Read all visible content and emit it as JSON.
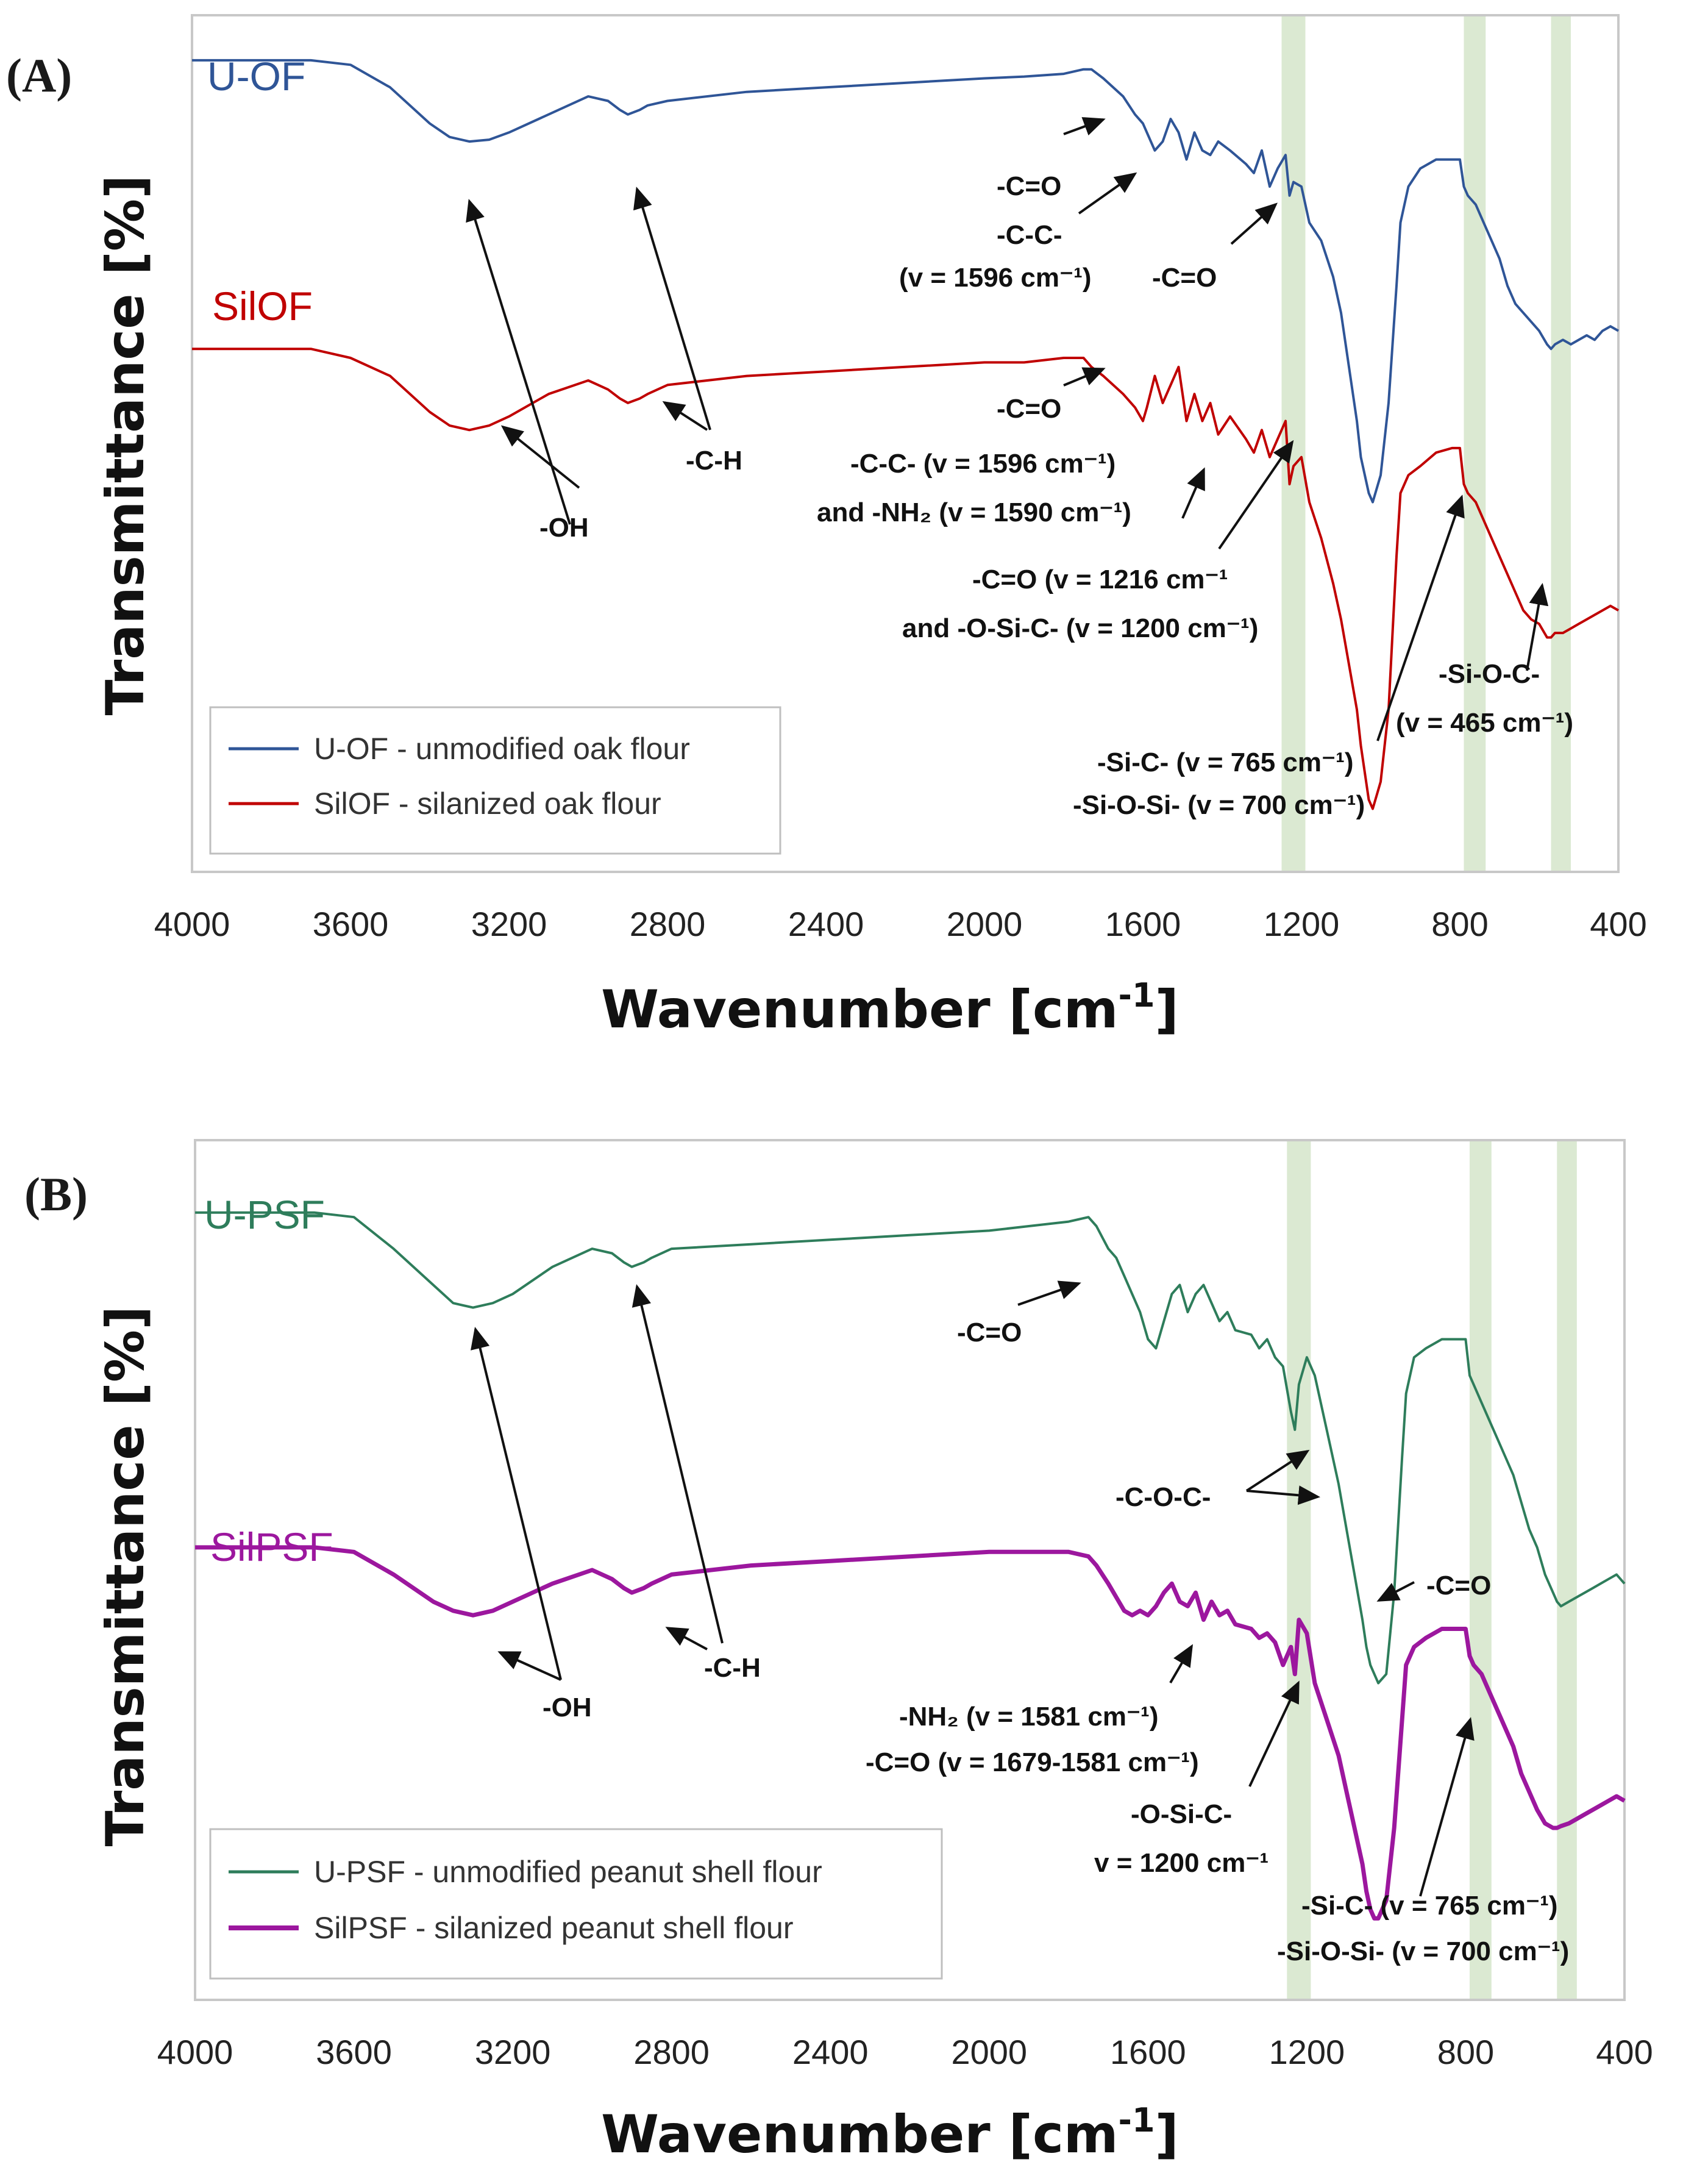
{
  "chart_data": [
    {
      "type": "line",
      "panel_label": "(A)",
      "xlabel": "Wavenumber [cm",
      "xlabel_sup": "-1",
      "xlabel_end": "]",
      "ylabel": "Transmittance [%]",
      "xlim": [
        4000,
        400
      ],
      "x_ticks": [
        "4000",
        "3600",
        "3200",
        "2800",
        "2400",
        "2000",
        "1600",
        "1200",
        "800",
        "400"
      ],
      "highlight_bands": [
        [
          1250,
          1190
        ],
        [
          790,
          735
        ],
        [
          570,
          520
        ]
      ],
      "series": [
        {
          "name": "U-OF",
          "color": "#2f5597",
          "x": [
            4000,
            3800,
            3700,
            3600,
            3500,
            3400,
            3350,
            3300,
            3250,
            3200,
            3100,
            3000,
            2950,
            2920,
            2900,
            2870,
            2850,
            2800,
            2600,
            2400,
            2200,
            2000,
            1900,
            1800,
            1750,
            1730,
            1700,
            1650,
            1620,
            1600,
            1590,
            1570,
            1550,
            1530,
            1510,
            1490,
            1470,
            1450,
            1430,
            1410,
            1380,
            1340,
            1320,
            1300,
            1280,
            1260,
            1240,
            1230,
            1220,
            1200,
            1180,
            1150,
            1120,
            1100,
            1080,
            1060,
            1050,
            1040,
            1030,
            1020,
            1000,
            980,
            960,
            950,
            930,
            900,
            860,
            820,
            800,
            790,
            780,
            760,
            740,
            720,
            700,
            680,
            660,
            640,
            620,
            600,
            580,
            570,
            560,
            540,
            520,
            500,
            480,
            460,
            440,
            420,
            400
          ],
          "y": [
            70,
            70,
            70,
            69.5,
            67,
            63,
            61.5,
            61,
            61.2,
            62,
            64,
            66,
            65.5,
            64.5,
            64,
            64.5,
            65,
            65.5,
            66.5,
            67,
            67.5,
            68,
            68.2,
            68.5,
            69,
            69,
            68,
            66,
            64,
            63,
            62,
            60,
            61,
            63.5,
            62,
            59,
            62,
            60,
            59.5,
            61,
            60,
            58.5,
            57.5,
            60,
            56,
            58,
            59.5,
            55,
            56.5,
            56,
            52,
            50,
            46,
            42,
            36,
            30,
            26,
            24,
            22,
            21,
            24,
            32,
            45,
            52,
            56,
            58,
            59,
            59,
            59,
            56,
            55,
            54,
            52,
            50,
            48,
            45,
            43,
            42,
            41,
            40,
            38.5,
            38,
            38.5,
            39,
            38.5,
            39,
            39.5,
            39,
            40,
            40.5,
            40
          ]
        },
        {
          "name": "SilOF",
          "color": "#c00000",
          "x": [
            4000,
            3800,
            3700,
            3600,
            3500,
            3400,
            3350,
            3300,
            3250,
            3200,
            3100,
            3000,
            2950,
            2920,
            2900,
            2870,
            2850,
            2800,
            2600,
            2400,
            2200,
            2000,
            1900,
            1800,
            1750,
            1730,
            1700,
            1650,
            1620,
            1600,
            1590,
            1570,
            1550,
            1530,
            1510,
            1490,
            1470,
            1450,
            1430,
            1410,
            1380,
            1340,
            1320,
            1300,
            1280,
            1260,
            1240,
            1230,
            1220,
            1200,
            1180,
            1150,
            1120,
            1100,
            1080,
            1060,
            1050,
            1040,
            1030,
            1020,
            1000,
            980,
            960,
            950,
            930,
            900,
            860,
            820,
            800,
            790,
            780,
            760,
            740,
            720,
            700,
            680,
            660,
            640,
            620,
            600,
            580,
            570,
            560,
            540,
            520,
            500,
            480,
            460,
            440,
            420,
            400
          ],
          "y": [
            38,
            38,
            38,
            37,
            35,
            31,
            29.5,
            29,
            29.5,
            30.5,
            33,
            34.5,
            33.5,
            32.5,
            32,
            32.5,
            33,
            34,
            35,
            35.5,
            36,
            36.5,
            36.5,
            37,
            37,
            36,
            35,
            33,
            31.5,
            30,
            31.5,
            35,
            32,
            34,
            36,
            30,
            33,
            30,
            32,
            28.5,
            30.5,
            28,
            26.5,
            29,
            26,
            28,
            30,
            23,
            25,
            26,
            21,
            17,
            12,
            8,
            3,
            -2,
            -6,
            -9,
            -12,
            -13,
            -10,
            -2,
            15,
            22,
            24,
            25,
            26.5,
            27,
            27,
            23,
            22,
            21,
            19,
            17,
            15,
            13,
            11,
            9,
            8,
            7.5,
            6,
            6,
            6.5,
            6.5,
            7,
            7.5,
            8,
            8.5,
            9,
            9.5,
            9
          ]
        }
      ],
      "series_labels": [
        "U-OF",
        "SilOF"
      ],
      "legend": {
        "position": "bottom-left",
        "entries": [
          {
            "text": "U-OF - unmodified oak flour",
            "color": "#2f5597"
          },
          {
            "text": "SilOF - silanized oak flour",
            "color": "#c00000"
          }
        ]
      },
      "annotations": [
        {
          "id": "a1",
          "text": "-C=O"
        },
        {
          "id": "a2",
          "text": "-C-C-"
        },
        {
          "id": "a3",
          "text": "(v = 1596 cm⁻¹)"
        },
        {
          "id": "a4",
          "text": "-C=O"
        },
        {
          "id": "a5",
          "text": "-C=O"
        },
        {
          "id": "a6",
          "text": "-C-C- (v = 1596 cm⁻¹)"
        },
        {
          "id": "a7",
          "text": "and -NH₂ (v = 1590 cm⁻¹)"
        },
        {
          "id": "a8",
          "text": "-C=O (v = 1216 cm⁻¹"
        },
        {
          "id": "a9",
          "text": "and -O-Si-C- (v = 1200 cm⁻¹)"
        },
        {
          "id": "a10",
          "text": "-C-H"
        },
        {
          "id": "a11",
          "text": "-OH"
        },
        {
          "id": "a12",
          "text": "-Si-O-C-"
        },
        {
          "id": "a13",
          "text": "(v = 465 cm⁻¹)"
        },
        {
          "id": "a14",
          "text": "-Si-C- (v = 765 cm⁻¹)"
        },
        {
          "id": "a15",
          "text": "-Si-O-Si- (v = 700 cm⁻¹)"
        }
      ]
    },
    {
      "type": "line",
      "panel_label": "(B)",
      "xlabel": "Wavenumber [cm",
      "xlabel_sup": "-1",
      "xlabel_end": "]",
      "ylabel": "Transmittance [%]",
      "xlim": [
        4000,
        400
      ],
      "x_ticks": [
        "4000",
        "3600",
        "3200",
        "2800",
        "2400",
        "2000",
        "1600",
        "1200",
        "800",
        "400"
      ],
      "highlight_bands": [
        [
          1250,
          1190
        ],
        [
          790,
          735
        ],
        [
          570,
          520
        ]
      ],
      "series": [
        {
          "name": "U-PSF",
          "color": "#2e7d5b",
          "x": [
            4000,
            3800,
            3700,
            3600,
            3500,
            3400,
            3350,
            3300,
            3250,
            3200,
            3100,
            3000,
            2950,
            2920,
            2900,
            2870,
            2850,
            2800,
            2600,
            2400,
            2200,
            2000,
            1900,
            1800,
            1750,
            1730,
            1700,
            1680,
            1660,
            1640,
            1620,
            1600,
            1580,
            1560,
            1540,
            1520,
            1500,
            1480,
            1460,
            1440,
            1420,
            1400,
            1380,
            1340,
            1320,
            1300,
            1280,
            1260,
            1240,
            1230,
            1220,
            1200,
            1180,
            1150,
            1120,
            1100,
            1080,
            1060,
            1050,
            1040,
            1030,
            1020,
            1000,
            980,
            960,
            950,
            930,
            900,
            860,
            820,
            800,
            790,
            780,
            760,
            740,
            720,
            700,
            680,
            660,
            640,
            620,
            600,
            580,
            570,
            560,
            540,
            520,
            500,
            480,
            460,
            440,
            420,
            400
          ],
          "y": [
            72,
            72,
            72,
            71.5,
            68,
            64,
            62,
            61.5,
            62,
            63,
            66,
            68,
            67.5,
            66.5,
            66,
            66.5,
            67,
            68,
            68.5,
            69,
            69.5,
            70,
            70.5,
            71,
            71.5,
            70.5,
            68,
            67,
            65,
            63,
            61,
            58,
            57,
            60,
            63,
            64,
            61,
            63,
            64,
            62,
            60,
            61,
            59,
            58.5,
            57,
            58,
            56,
            55,
            50,
            48,
            53,
            56,
            54,
            48,
            42,
            37,
            32,
            27,
            24,
            22,
            21,
            20,
            21,
            30,
            45,
            52,
            56,
            57,
            58,
            58,
            58,
            54,
            53,
            51,
            49,
            47,
            45,
            43,
            40,
            37,
            35,
            32,
            30,
            29,
            28.5,
            29,
            29.5,
            30,
            30.5,
            31,
            31.5,
            32,
            31
          ]
        },
        {
          "name": "SilPSF",
          "color": "#9c179e",
          "x": [
            4000,
            3800,
            3700,
            3600,
            3500,
            3400,
            3350,
            3300,
            3250,
            3200,
            3100,
            3000,
            2950,
            2920,
            2900,
            2870,
            2850,
            2800,
            2600,
            2400,
            2200,
            2000,
            1900,
            1800,
            1750,
            1730,
            1700,
            1680,
            1660,
            1640,
            1620,
            1600,
            1580,
            1560,
            1540,
            1520,
            1500,
            1480,
            1460,
            1440,
            1420,
            1400,
            1380,
            1340,
            1320,
            1300,
            1280,
            1260,
            1240,
            1230,
            1220,
            1200,
            1180,
            1150,
            1120,
            1100,
            1080,
            1060,
            1050,
            1040,
            1030,
            1020,
            1000,
            980,
            960,
            950,
            930,
            900,
            860,
            820,
            800,
            790,
            780,
            760,
            740,
            720,
            700,
            680,
            660,
            640,
            620,
            600,
            580,
            570,
            560,
            540,
            520,
            500,
            480,
            460,
            440,
            420,
            400
          ],
          "y": [
            35,
            35,
            35,
            34.5,
            32,
            29,
            28,
            27.5,
            28,
            29,
            31,
            32.5,
            31.5,
            30.5,
            30,
            30.5,
            31,
            32,
            33,
            33.5,
            34,
            34.5,
            34.5,
            34.5,
            34,
            33,
            31,
            29.5,
            28,
            27.5,
            28,
            27.5,
            28.5,
            30,
            31,
            29,
            28.5,
            30,
            27,
            29,
            27.5,
            28,
            26.5,
            26,
            25,
            25.5,
            24.5,
            22,
            24,
            21,
            27,
            25.5,
            20,
            16,
            12,
            8,
            4,
            0,
            -3,
            -5,
            -6,
            -6,
            -4,
            4,
            16,
            22,
            24,
            25,
            26,
            26,
            26,
            23,
            22,
            21,
            19,
            17,
            15,
            13,
            10,
            8,
            6,
            4.5,
            4,
            4,
            4.2,
            4.5,
            5,
            5.5,
            6,
            6.5,
            7,
            7.5,
            7
          ]
        }
      ],
      "series_labels": [
        "U-PSF",
        "SilPSF"
      ],
      "legend": {
        "position": "bottom-left",
        "entries": [
          {
            "text": "U-PSF - unmodified peanut shell flour",
            "color": "#2e7d5b"
          },
          {
            "text": "SilPSF - silanized peanut shell flour",
            "color": "#9c179e"
          }
        ]
      },
      "annotations": [
        {
          "id": "b1",
          "text": "-C=O"
        },
        {
          "id": "b2",
          "text": "-C-O-C-"
        },
        {
          "id": "b3",
          "text": "-C=O"
        },
        {
          "id": "b4",
          "text": "-C-H"
        },
        {
          "id": "b5",
          "text": "-OH"
        },
        {
          "id": "b6",
          "text": "-NH₂ (v = 1581 cm⁻¹)"
        },
        {
          "id": "b7",
          "text": "-C=O (v = 1679-1581 cm⁻¹)"
        },
        {
          "id": "b8",
          "text": "-O-Si-C-"
        },
        {
          "id": "b9",
          "text": "v = 1200 cm⁻¹"
        },
        {
          "id": "b10",
          "text": "-Si-C- (v = 765 cm⁻¹)"
        },
        {
          "id": "b11",
          "text": "-Si-O-Si- (v = 700 cm⁻¹)"
        }
      ]
    }
  ]
}
